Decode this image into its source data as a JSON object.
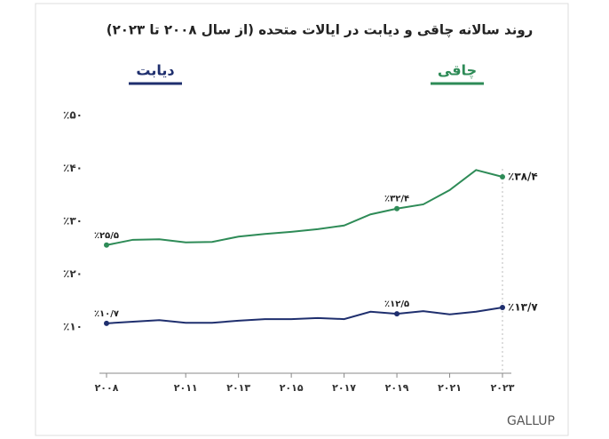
{
  "chart_data": {
    "type": "line",
    "title": "روند سالانه چاقی و دیابت در ایالات متحده (از سال ۲۰۰۸ تا ۲۰۲۳)",
    "x": [
      2008,
      2009,
      2010,
      2011,
      2012,
      2013,
      2014,
      2015,
      2016,
      2017,
      2018,
      2019,
      2020,
      2021,
      2022,
      2023
    ],
    "series": [
      {
        "name": "دیابت",
        "color": "#1f2f6e",
        "values": [
          10.7,
          11.0,
          11.3,
          10.8,
          10.8,
          11.2,
          11.5,
          11.5,
          11.7,
          11.5,
          12.9,
          12.5,
          13.0,
          12.4,
          12.9,
          13.7
        ],
        "value_labels": [
          "٪۱۰/۷",
          null,
          null,
          null,
          null,
          null,
          null,
          null,
          null,
          null,
          null,
          "٪۱۲/۵",
          null,
          null,
          null,
          "٪۱۳/۷"
        ]
      },
      {
        "name": "چاقی",
        "color": "#2e8b57",
        "values": [
          25.5,
          26.5,
          26.6,
          26.0,
          26.1,
          27.1,
          27.6,
          28.0,
          28.5,
          29.2,
          31.3,
          32.4,
          33.2,
          35.9,
          39.7,
          38.4
        ],
        "value_labels": [
          "٪۲۵/۵",
          null,
          null,
          null,
          null,
          null,
          null,
          null,
          null,
          null,
          null,
          "٪۳۲/۴",
          null,
          null,
          null,
          "٪۳۸/۴"
        ]
      }
    ],
    "xlim": [
      2008,
      2023
    ],
    "xticks": [
      {
        "value": 2008,
        "label": "۲۰۰۸"
      },
      {
        "value": 2011,
        "label": "۲۰۱۱"
      },
      {
        "value": 2013,
        "label": "۲۰۱۳"
      },
      {
        "value": 2015,
        "label": "۲۰۱۵"
      },
      {
        "value": 2017,
        "label": "۲۰۱۷"
      },
      {
        "value": 2019,
        "label": "۲۰۱۹"
      },
      {
        "value": 2021,
        "label": "۲۰۲۱"
      },
      {
        "value": 2023,
        "label": "۲۰۲۳"
      }
    ],
    "ylim": [
      10,
      50
    ],
    "yticks": [
      {
        "value": 10,
        "label": "٪۱۰"
      },
      {
        "value": 20,
        "label": "٪۲۰"
      },
      {
        "value": 30,
        "label": "٪۳۰"
      },
      {
        "value": 40,
        "label": "٪۴۰"
      },
      {
        "value": 50,
        "label": "٪۵۰"
      }
    ],
    "source": "GALLUP"
  }
}
